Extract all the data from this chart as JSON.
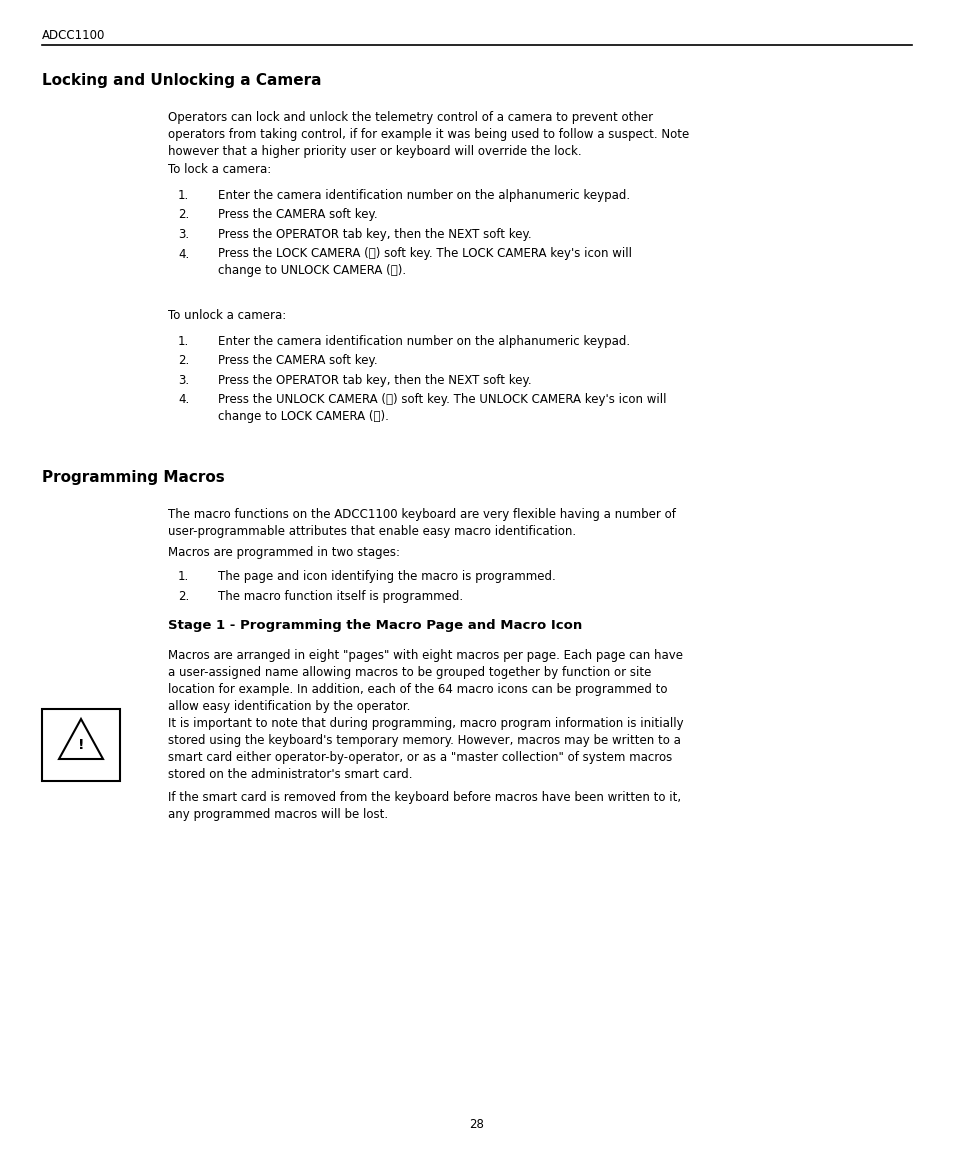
{
  "header_text": "ADCC1100",
  "title1": "Locking and Unlocking a Camera",
  "title2": "Programming Macros",
  "subtitle1": "Stage 1 - Programming the Macro Page and Macro Icon",
  "page_number": "28",
  "background_color": "#ffffff",
  "text_color": "#000000",
  "para_to_lock": "To lock a camera:",
  "para_to_unlock": "To unlock a camera:",
  "prog_macros_para2": "Macros are programmed in two stages:",
  "lock_steps": [
    "Enter the camera identification number on the alphanumeric keypad.",
    "Press the CAMERA soft key.",
    "Press the OPERATOR tab key, then the NEXT soft key.",
    "Press the LOCK CAMERA (Ⓢ) soft key. The LOCK CAMERA key's icon will\nchange to UNLOCK CAMERA (Ⓢ)."
  ],
  "unlock_steps": [
    "Enter the camera identification number on the alphanumeric keypad.",
    "Press the CAMERA soft key.",
    "Press the OPERATOR tab key, then the NEXT soft key.",
    "Press the UNLOCK CAMERA (Ⓢ) soft key. The UNLOCK CAMERA key's icon will\nchange to LOCK CAMERA (Ⓢ)."
  ],
  "prog_macros_steps": [
    "The page and icon identifying the macro is programmed.",
    "The macro function itself is programmed."
  ]
}
